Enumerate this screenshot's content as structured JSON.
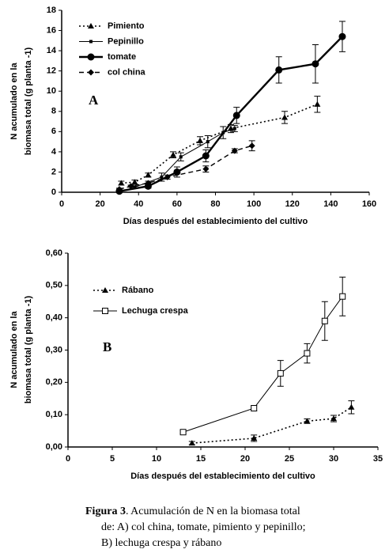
{
  "chart_data": [
    {
      "type": "line",
      "annotation": "A",
      "xlabel": "Días después del establecimiento del cultivo",
      "ylabel": [
        "N acumulado en la",
        "biomasa total (g planta -1)"
      ],
      "xlim": [
        0,
        160
      ],
      "xticks": [
        0,
        20,
        40,
        60,
        80,
        100,
        120,
        140,
        160
      ],
      "ylim": [
        0,
        18
      ],
      "yticks": [
        0,
        2,
        4,
        6,
        8,
        10,
        12,
        14,
        16,
        18
      ],
      "legend": "upper left",
      "series": [
        {
          "name": "Pimiento",
          "color": "#000000",
          "dash": "dotted",
          "marker": "triangle",
          "x": [
            31,
            38,
            45,
            58,
            72,
            88,
            116,
            133
          ],
          "values": [
            0.9,
            1.0,
            1.7,
            3.7,
            5.1,
            6.3,
            7.4,
            8.7
          ],
          "errors": [
            0.2,
            0.2,
            0.2,
            0.3,
            0.4,
            0.4,
            0.6,
            0.8
          ]
        },
        {
          "name": "Pepinillo",
          "color": "#000000",
          "dash": "solid",
          "marker": "square",
          "x": [
            38,
            52,
            62,
            76,
            84,
            90
          ],
          "values": [
            0.5,
            1.5,
            3.5,
            5.0,
            5.9,
            6.3
          ],
          "errors": [
            0.1,
            0.4,
            0.4,
            0.6,
            0.6,
            0.3
          ]
        },
        {
          "name": "tomate",
          "color": "#000000",
          "dash": "thick",
          "marker": "circle",
          "x": [
            30,
            45,
            60,
            75,
            91,
            113,
            132,
            146
          ],
          "values": [
            0.1,
            0.6,
            2.0,
            3.6,
            7.6,
            12.1,
            12.7,
            15.4
          ],
          "errors": [
            0.1,
            0.2,
            0.5,
            0.6,
            0.8,
            1.3,
            1.9,
            1.5
          ]
        },
        {
          "name": "col china",
          "color": "#000000",
          "dash": "dashed",
          "marker": "diamond",
          "x": [
            30,
            36,
            45,
            55,
            75,
            90,
            99
          ],
          "values": [
            0.3,
            0.6,
            0.9,
            1.5,
            2.3,
            4.1,
            4.6
          ],
          "errors": [
            0.1,
            0.1,
            0.2,
            0.2,
            0.3,
            0.2,
            0.5
          ]
        }
      ]
    },
    {
      "type": "line",
      "annotation": "B",
      "xlabel": "Días después del establecimiento del cultivo",
      "ylabel": [
        "N acumulado en la",
        "biomasa total (g planta -1)"
      ],
      "xlim": [
        0,
        35
      ],
      "xticks": [
        0,
        5,
        10,
        15,
        20,
        25,
        30,
        35
      ],
      "ylim": [
        0,
        0.6
      ],
      "yticks": [
        {
          "value": 0,
          "label": "0,00"
        },
        {
          "value": 0.1,
          "label": "0,10"
        },
        {
          "value": 0.2,
          "label": "0,20"
        },
        {
          "value": 0.3,
          "label": "0,30"
        },
        {
          "value": 0.4,
          "label": "0,40"
        },
        {
          "value": 0.5,
          "label": "0,50"
        },
        {
          "value": 0.6,
          "label": "0,60"
        }
      ],
      "legend": "upper left",
      "series": [
        {
          "name": "Rábano",
          "color": "#000000",
          "dash": "dotted",
          "marker": "triangle",
          "x": [
            14,
            21,
            27,
            30,
            32
          ],
          "values": [
            0.012,
            0.027,
            0.08,
            0.088,
            0.123
          ],
          "errors": [
            0.005,
            0.01,
            0.007,
            0.01,
            0.02
          ]
        },
        {
          "name": "Lechuga crespa",
          "color": "#000000",
          "dash": "solid",
          "marker": "open-square",
          "x": [
            13,
            21,
            24,
            27,
            29,
            31
          ],
          "values": [
            0.046,
            0.12,
            0.228,
            0.29,
            0.39,
            0.466
          ],
          "errors": [
            0.004,
            0.008,
            0.04,
            0.03,
            0.06,
            0.06
          ]
        }
      ]
    }
  ],
  "caption": {
    "label": "Figura 3",
    "lines": [
      ". Acumulación de N en la biomasa total",
      "de: A) col china, tomate, pimiento y pepinillo;",
      "B) lechuga crespa y rábano"
    ]
  }
}
